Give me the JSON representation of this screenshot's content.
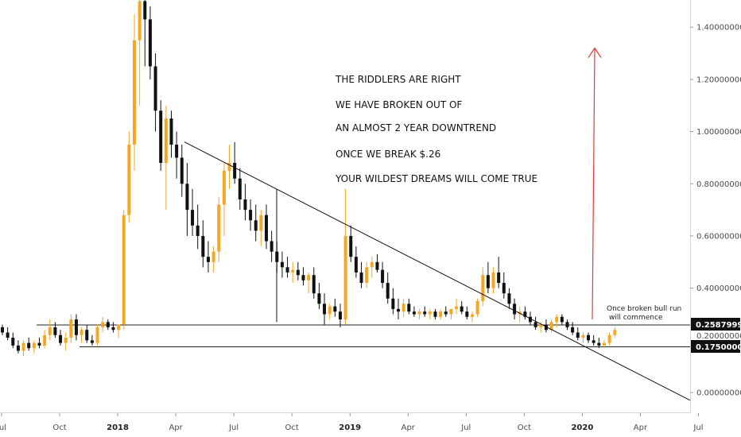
{
  "chart_data": {
    "type": "candlestick",
    "y_ticks": [
      "1.40000000",
      "1.20000000",
      "1.00000000",
      "0.80000000",
      "0.60000000",
      "0.40000000",
      "0.00000000"
    ],
    "y_tick_values": [
      1.4,
      1.2,
      1.0,
      0.8,
      0.6,
      0.4,
      0.0
    ],
    "ylim": [
      -0.02,
      1.52
    ],
    "x_ticks": [
      {
        "label": "Jul",
        "bold": false
      },
      {
        "label": "Oct",
        "bold": false
      },
      {
        "label": "2018",
        "bold": true
      },
      {
        "label": "Apr",
        "bold": false
      },
      {
        "label": "Jul",
        "bold": false
      },
      {
        "label": "Oct",
        "bold": false
      },
      {
        "label": "2019",
        "bold": true
      },
      {
        "label": "Apr",
        "bold": false
      },
      {
        "label": "Jul",
        "bold": false
      },
      {
        "label": "Oct",
        "bold": false
      },
      {
        "label": "2020",
        "bold": true
      },
      {
        "label": "Apr",
        "bold": false
      },
      {
        "label": "Jul",
        "bold": false
      }
    ],
    "price_levels": [
      {
        "label": "0.25879999",
        "value": 0.2588
      },
      {
        "label": "0.17500000",
        "value": 0.175
      }
    ],
    "hidden_level_label": "0.20000000",
    "colors": {
      "up": "#f5a623",
      "down": "#111111",
      "arrow": "#e53935",
      "badge": "#111111"
    },
    "annotation_lines": [
      "THE RIDDLERS ARE RIGHT",
      "WE HAVE BROKEN OUT OF",
      "AN ALMOST 2 YEAR DOWNTREND",
      "ONCE WE BREAK $.26",
      "YOUR WILDEST DREAMS WILL COME TRUE"
    ],
    "note_lines": [
      "Once broken bull run",
      "will commence"
    ],
    "downtrend_line": {
      "start": {
        "week": 44,
        "value": 0.96
      },
      "end": {
        "week": 126,
        "value": -0.03
      }
    },
    "arrow": {
      "week": 107,
      "from": 0.28,
      "to": 1.32
    },
    "candles": [
      [
        0.25,
        0.26,
        0.22,
        0.23
      ],
      [
        0.23,
        0.25,
        0.2,
        0.21
      ],
      [
        0.21,
        0.23,
        0.17,
        0.18
      ],
      [
        0.18,
        0.2,
        0.15,
        0.16
      ],
      [
        0.16,
        0.2,
        0.14,
        0.19
      ],
      [
        0.19,
        0.21,
        0.16,
        0.17
      ],
      [
        0.17,
        0.2,
        0.15,
        0.19
      ],
      [
        0.19,
        0.21,
        0.17,
        0.18
      ],
      [
        0.18,
        0.24,
        0.17,
        0.22
      ],
      [
        0.22,
        0.28,
        0.2,
        0.25
      ],
      [
        0.25,
        0.27,
        0.21,
        0.22
      ],
      [
        0.22,
        0.24,
        0.18,
        0.19
      ],
      [
        0.19,
        0.23,
        0.16,
        0.21
      ],
      [
        0.21,
        0.3,
        0.19,
        0.28
      ],
      [
        0.28,
        0.3,
        0.2,
        0.22
      ],
      [
        0.22,
        0.25,
        0.19,
        0.24
      ],
      [
        0.24,
        0.26,
        0.19,
        0.2
      ],
      [
        0.2,
        0.22,
        0.18,
        0.19
      ],
      [
        0.19,
        0.26,
        0.18,
        0.25
      ],
      [
        0.25,
        0.29,
        0.23,
        0.27
      ],
      [
        0.27,
        0.28,
        0.24,
        0.25
      ],
      [
        0.25,
        0.27,
        0.23,
        0.24
      ],
      [
        0.24,
        0.26,
        0.21,
        0.26
      ],
      [
        0.26,
        0.7,
        0.24,
        0.68
      ],
      [
        0.68,
        1.0,
        0.65,
        0.95
      ],
      [
        0.95,
        1.45,
        0.85,
        1.35
      ],
      [
        1.35,
        1.52,
        1.1,
        1.5
      ],
      [
        1.5,
        1.55,
        1.25,
        1.43
      ],
      [
        1.43,
        1.48,
        1.2,
        1.25
      ],
      [
        1.25,
        1.3,
        1.0,
        1.08
      ],
      [
        1.08,
        1.12,
        0.85,
        0.88
      ],
      [
        0.88,
        1.1,
        0.7,
        1.05
      ],
      [
        1.05,
        1.08,
        0.9,
        0.95
      ],
      [
        0.95,
        1.0,
        0.82,
        0.9
      ],
      [
        0.9,
        0.95,
        0.75,
        0.8
      ],
      [
        0.8,
        0.88,
        0.6,
        0.7
      ],
      [
        0.7,
        0.78,
        0.6,
        0.64
      ],
      [
        0.64,
        0.72,
        0.55,
        0.6
      ],
      [
        0.6,
        0.66,
        0.48,
        0.52
      ],
      [
        0.52,
        0.58,
        0.46,
        0.5
      ],
      [
        0.5,
        0.56,
        0.46,
        0.54
      ],
      [
        0.54,
        0.75,
        0.5,
        0.72
      ],
      [
        0.72,
        0.88,
        0.6,
        0.85
      ],
      [
        0.85,
        0.95,
        0.78,
        0.88
      ],
      [
        0.88,
        0.96,
        0.8,
        0.82
      ],
      [
        0.82,
        0.86,
        0.7,
        0.74
      ],
      [
        0.74,
        0.8,
        0.66,
        0.7
      ],
      [
        0.7,
        0.74,
        0.62,
        0.66
      ],
      [
        0.66,
        0.72,
        0.58,
        0.62
      ],
      [
        0.62,
        0.7,
        0.56,
        0.68
      ],
      [
        0.68,
        0.72,
        0.55,
        0.58
      ],
      [
        0.58,
        0.62,
        0.5,
        0.54
      ],
      [
        0.54,
        0.58,
        0.46,
        0.5
      ],
      [
        0.5,
        0.54,
        0.44,
        0.48
      ],
      [
        0.48,
        0.52,
        0.44,
        0.46
      ],
      [
        0.46,
        0.5,
        0.42,
        0.47
      ],
      [
        0.47,
        0.5,
        0.43,
        0.45
      ],
      [
        0.45,
        0.48,
        0.41,
        0.43
      ],
      [
        0.43,
        0.46,
        0.38,
        0.45
      ],
      [
        0.45,
        0.48,
        0.36,
        0.38
      ],
      [
        0.38,
        0.42,
        0.32,
        0.34
      ],
      [
        0.34,
        0.38,
        0.26,
        0.3
      ],
      [
        0.3,
        0.34,
        0.28,
        0.33
      ],
      [
        0.33,
        0.36,
        0.29,
        0.31
      ],
      [
        0.31,
        0.34,
        0.25,
        0.28
      ],
      [
        0.28,
        0.78,
        0.26,
        0.6
      ],
      [
        0.6,
        0.64,
        0.5,
        0.52
      ],
      [
        0.52,
        0.56,
        0.44,
        0.46
      ],
      [
        0.46,
        0.5,
        0.4,
        0.42
      ],
      [
        0.42,
        0.5,
        0.4,
        0.48
      ],
      [
        0.48,
        0.52,
        0.44,
        0.5
      ],
      [
        0.5,
        0.53,
        0.46,
        0.47
      ],
      [
        0.47,
        0.5,
        0.4,
        0.42
      ],
      [
        0.42,
        0.46,
        0.34,
        0.36
      ],
      [
        0.36,
        0.4,
        0.3,
        0.32
      ],
      [
        0.32,
        0.36,
        0.28,
        0.31
      ],
      [
        0.31,
        0.36,
        0.29,
        0.34
      ],
      [
        0.34,
        0.36,
        0.3,
        0.31
      ],
      [
        0.31,
        0.33,
        0.29,
        0.3
      ],
      [
        0.3,
        0.32,
        0.28,
        0.31
      ],
      [
        0.31,
        0.33,
        0.29,
        0.3
      ],
      [
        0.3,
        0.32,
        0.28,
        0.31
      ],
      [
        0.31,
        0.32,
        0.28,
        0.29
      ],
      [
        0.29,
        0.32,
        0.28,
        0.31
      ],
      [
        0.31,
        0.33,
        0.29,
        0.3
      ],
      [
        0.3,
        0.32,
        0.28,
        0.32
      ],
      [
        0.32,
        0.36,
        0.3,
        0.33
      ],
      [
        0.33,
        0.35,
        0.3,
        0.31
      ],
      [
        0.31,
        0.33,
        0.28,
        0.29
      ],
      [
        0.29,
        0.31,
        0.27,
        0.3
      ],
      [
        0.3,
        0.36,
        0.29,
        0.35
      ],
      [
        0.35,
        0.48,
        0.33,
        0.45
      ],
      [
        0.45,
        0.5,
        0.38,
        0.4
      ],
      [
        0.4,
        0.48,
        0.38,
        0.46
      ],
      [
        0.46,
        0.52,
        0.4,
        0.42
      ],
      [
        0.42,
        0.46,
        0.36,
        0.38
      ],
      [
        0.38,
        0.4,
        0.32,
        0.34
      ],
      [
        0.34,
        0.36,
        0.28,
        0.3
      ],
      [
        0.3,
        0.33,
        0.27,
        0.31
      ],
      [
        0.31,
        0.33,
        0.28,
        0.29
      ],
      [
        0.29,
        0.31,
        0.26,
        0.27
      ],
      [
        0.27,
        0.29,
        0.24,
        0.25
      ],
      [
        0.25,
        0.27,
        0.23,
        0.26
      ],
      [
        0.26,
        0.28,
        0.23,
        0.24
      ],
      [
        0.24,
        0.28,
        0.23,
        0.27
      ],
      [
        0.27,
        0.3,
        0.25,
        0.29
      ],
      [
        0.29,
        0.3,
        0.26,
        0.27
      ],
      [
        0.27,
        0.28,
        0.24,
        0.25
      ],
      [
        0.25,
        0.27,
        0.22,
        0.23
      ],
      [
        0.23,
        0.25,
        0.2,
        0.21
      ],
      [
        0.21,
        0.23,
        0.19,
        0.22
      ],
      [
        0.22,
        0.23,
        0.19,
        0.2
      ],
      [
        0.2,
        0.22,
        0.18,
        0.19
      ],
      [
        0.19,
        0.21,
        0.17,
        0.18
      ],
      [
        0.18,
        0.2,
        0.17,
        0.19
      ],
      [
        0.19,
        0.23,
        0.18,
        0.22
      ],
      [
        0.22,
        0.25,
        0.21,
        0.24
      ]
    ]
  }
}
